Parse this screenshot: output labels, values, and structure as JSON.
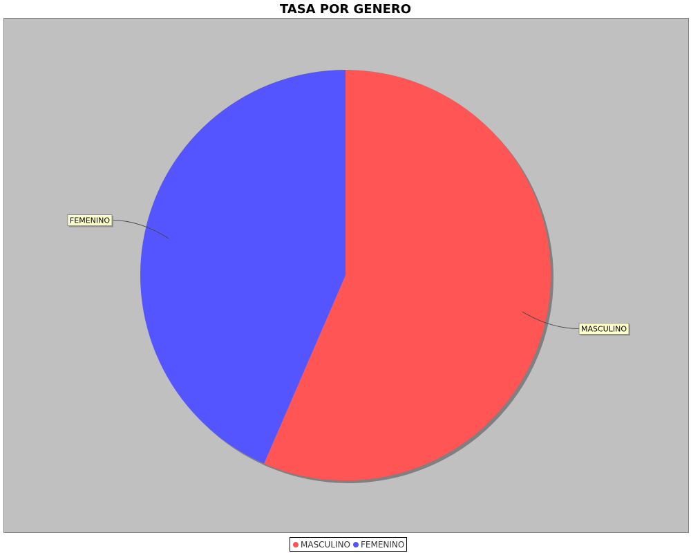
{
  "chart_data": {
    "type": "pie",
    "title": "TASA POR GENERO",
    "categories": [
      "MASCULINO",
      "FEMENINO"
    ],
    "values": [
      56.5,
      43.5
    ],
    "colors": [
      "#ff5555",
      "#5555ff"
    ],
    "start_angle_deg": 90,
    "direction": "clockwise",
    "plot_background": "#c0c0c0",
    "label_background": "#ffffcc",
    "legend_position": "bottom",
    "legend": [
      "MASCULINO",
      "FEMENINO"
    ]
  }
}
